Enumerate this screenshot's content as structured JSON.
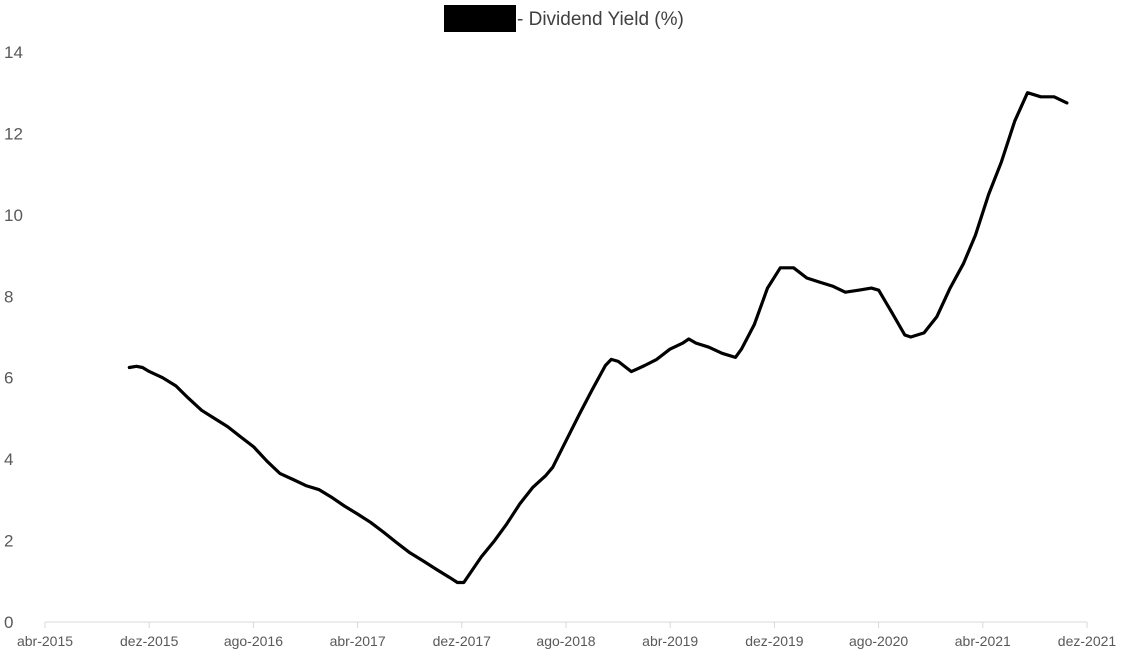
{
  "chart_data": {
    "type": "line",
    "title": "- Dividend Yield (%)",
    "title_redaction": true,
    "xlabel": "",
    "ylabel": "",
    "ylim": [
      0,
      14
    ],
    "y_ticks": [
      0,
      2,
      4,
      6,
      8,
      10,
      12,
      14
    ],
    "x_range": [
      "2015-04",
      "2021-12"
    ],
    "x_ticks": [
      "abr-2015",
      "dez-2015",
      "ago-2016",
      "abr-2017",
      "dez-2017",
      "ago-2018",
      "abr-2019",
      "dez-2019",
      "ago-2020",
      "abr-2021",
      "dez-2021"
    ],
    "grid": false,
    "legend": "none",
    "colors": {
      "line": "#000000",
      "axis": "#d9d9d9",
      "text": "#595959",
      "redaction": "#000000"
    },
    "series": [
      {
        "points": [
          [
            "2015-10-15",
            6.25
          ],
          [
            "2015-11-01",
            6.28
          ],
          [
            "2015-11-15",
            6.25
          ],
          [
            "2015-12-01",
            6.15
          ],
          [
            "2016-01-01",
            6.0
          ],
          [
            "2016-02-01",
            5.8
          ],
          [
            "2016-03-01",
            5.5
          ],
          [
            "2016-04-01",
            5.2
          ],
          [
            "2016-05-01",
            5.0
          ],
          [
            "2016-06-01",
            4.8
          ],
          [
            "2016-07-01",
            4.55
          ],
          [
            "2016-08-01",
            4.3
          ],
          [
            "2016-09-01",
            3.95
          ],
          [
            "2016-10-01",
            3.65
          ],
          [
            "2016-11-01",
            3.5
          ],
          [
            "2016-12-01",
            3.35
          ],
          [
            "2017-01-01",
            3.25
          ],
          [
            "2017-02-01",
            3.05
          ],
          [
            "2017-03-01",
            2.85
          ],
          [
            "2017-04-01",
            2.65
          ],
          [
            "2017-05-01",
            2.45
          ],
          [
            "2017-06-01",
            2.2
          ],
          [
            "2017-07-01",
            1.95
          ],
          [
            "2017-08-01",
            1.7
          ],
          [
            "2017-09-01",
            1.5
          ],
          [
            "2017-10-01",
            1.3
          ],
          [
            "2017-11-01",
            1.1
          ],
          [
            "2017-11-20",
            0.97
          ],
          [
            "2017-12-05",
            0.97
          ],
          [
            "2017-12-20",
            1.2
          ],
          [
            "2018-01-15",
            1.6
          ],
          [
            "2018-02-15",
            2.0
          ],
          [
            "2018-03-15",
            2.4
          ],
          [
            "2018-04-15",
            2.9
          ],
          [
            "2018-05-15",
            3.3
          ],
          [
            "2018-06-15",
            3.6
          ],
          [
            "2018-07-01",
            3.8
          ],
          [
            "2018-08-01",
            4.45
          ],
          [
            "2018-09-01",
            5.1
          ],
          [
            "2018-10-01",
            5.7
          ],
          [
            "2018-11-01",
            6.3
          ],
          [
            "2018-11-15",
            6.45
          ],
          [
            "2018-12-01",
            6.4
          ],
          [
            "2019-01-01",
            6.15
          ],
          [
            "2019-02-01",
            6.3
          ],
          [
            "2019-03-01",
            6.45
          ],
          [
            "2019-04-01",
            6.7
          ],
          [
            "2019-05-01",
            6.85
          ],
          [
            "2019-05-15",
            6.95
          ],
          [
            "2019-06-01",
            6.85
          ],
          [
            "2019-07-01",
            6.75
          ],
          [
            "2019-08-01",
            6.6
          ],
          [
            "2019-09-01",
            6.5
          ],
          [
            "2019-09-15",
            6.7
          ],
          [
            "2019-10-15",
            7.3
          ],
          [
            "2019-11-15",
            8.2
          ],
          [
            "2019-12-15",
            8.7
          ],
          [
            "2020-01-15",
            8.7
          ],
          [
            "2020-02-15",
            8.45
          ],
          [
            "2020-03-15",
            8.35
          ],
          [
            "2020-04-15",
            8.25
          ],
          [
            "2020-05-15",
            8.1
          ],
          [
            "2020-06-15",
            8.15
          ],
          [
            "2020-07-15",
            8.2
          ],
          [
            "2020-08-01",
            8.15
          ],
          [
            "2020-09-01",
            7.6
          ],
          [
            "2020-10-01",
            7.05
          ],
          [
            "2020-10-15",
            7.0
          ],
          [
            "2020-11-15",
            7.1
          ],
          [
            "2020-12-15",
            7.5
          ],
          [
            "2021-01-15",
            8.2
          ],
          [
            "2021-02-15",
            8.8
          ],
          [
            "2021-03-15",
            9.5
          ],
          [
            "2021-04-15",
            10.5
          ],
          [
            "2021-05-15",
            11.3
          ],
          [
            "2021-06-15",
            12.3
          ],
          [
            "2021-07-15",
            13.0
          ],
          [
            "2021-08-15",
            12.9
          ],
          [
            "2021-09-15",
            12.9
          ],
          [
            "2021-10-15",
            12.75
          ]
        ]
      }
    ]
  }
}
